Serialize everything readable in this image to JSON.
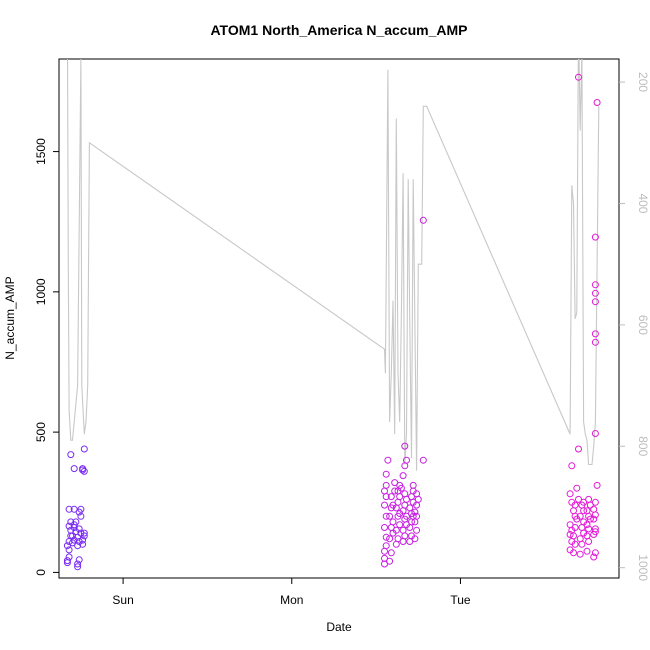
{
  "chart_data": {
    "type": "scatter",
    "title": "ATOM1 North_America N_accum_AMP",
    "xlabel": "Date",
    "ylabel": "N_accum_AMP",
    "xlim": [
      -0.38,
      2.94
    ],
    "ylim": [
      -20,
      1830
    ],
    "x_ticks": [
      {
        "value": 0,
        "label": "Sun"
      },
      {
        "value": 1,
        "label": "Mon"
      },
      {
        "value": 2,
        "label": "Tue"
      }
    ],
    "y_ticks": [
      0,
      500,
      1000,
      1500
    ],
    "y2_ticks": [
      200,
      400,
      600,
      800,
      1000
    ],
    "y2lim": [
      1017,
      162
    ],
    "grid": false,
    "colors": {
      "line": "#c8c8c8",
      "early_points": "#7a2cf5",
      "late_points": "#e41ad8",
      "axis": "#000000",
      "right_axis": "#bdbdbd"
    },
    "line_series": {
      "x": [
        -0.33,
        -0.325,
        -0.32,
        -0.31,
        -0.3,
        -0.29,
        -0.27,
        -0.25,
        -0.25,
        -0.245,
        -0.23,
        -0.22,
        -0.21,
        -0.2,
        -1.5,
        1.55,
        1.555,
        1.57,
        1.58,
        1.59,
        1.6,
        1.61,
        1.62,
        1.63,
        1.64,
        1.65,
        1.66,
        1.67,
        1.68,
        1.69,
        1.7,
        1.71,
        1.72,
        1.73,
        1.74,
        1.75,
        1.76,
        1.77,
        1.78,
        1.79,
        1.8,
        2.65,
        2.66,
        2.67,
        2.68,
        2.69,
        2.7,
        2.71,
        2.72,
        2.73,
        2.74,
        2.75,
        2.76,
        2.77,
        2.78,
        2.79,
        2.8,
        2.82
      ],
      "y2": [
        100,
        500,
        740,
        790,
        790,
        760,
        700,
        160,
        160,
        700,
        780,
        760,
        700,
        300,
        300,
        640,
        680,
        180,
        760,
        680,
        560,
        780,
        260,
        680,
        760,
        580,
        350,
        830,
        780,
        360,
        600,
        820,
        360,
        600,
        840,
        500,
        500,
        500,
        240,
        240,
        240,
        780,
        370,
        400,
        590,
        580,
        100,
        280,
        150,
        760,
        780,
        790,
        830,
        830,
        830,
        800,
        760,
        240
      ]
    },
    "series": [
      {
        "color": "#7a2cf5",
        "points": [
          [
            -0.33,
            35
          ],
          [
            -0.33,
            42
          ],
          [
            -0.32,
            55
          ],
          [
            -0.32,
            80
          ],
          [
            -0.33,
            95
          ],
          [
            -0.32,
            110
          ],
          [
            -0.31,
            130
          ],
          [
            -0.31,
            150
          ],
          [
            -0.32,
            165
          ],
          [
            -0.31,
            180
          ],
          [
            -0.32,
            225
          ],
          [
            -0.31,
            420
          ],
          [
            -0.3,
            105
          ],
          [
            -0.29,
            115
          ],
          [
            -0.3,
            130
          ],
          [
            -0.28,
            145
          ],
          [
            -0.29,
            160
          ],
          [
            -0.29,
            170
          ],
          [
            -0.28,
            180
          ],
          [
            -0.29,
            225
          ],
          [
            -0.29,
            370
          ],
          [
            -0.27,
            20
          ],
          [
            -0.27,
            30
          ],
          [
            -0.26,
            45
          ],
          [
            -0.27,
            95
          ],
          [
            -0.26,
            110
          ],
          [
            -0.27,
            125
          ],
          [
            -0.25,
            140
          ],
          [
            -0.26,
            155
          ],
          [
            -0.25,
            200
          ],
          [
            -0.26,
            215
          ],
          [
            -0.25,
            225
          ],
          [
            -0.24,
            100
          ],
          [
            -0.24,
            115
          ],
          [
            -0.23,
            130
          ],
          [
            -0.23,
            140
          ],
          [
            -0.23,
            360
          ],
          [
            -0.24,
            365
          ],
          [
            -0.24,
            370
          ],
          [
            -0.23,
            440
          ]
        ]
      },
      {
        "color": "#c61fe0",
        "points": [
          [
            1.55,
            30
          ],
          [
            1.55,
            50
          ],
          [
            1.55,
            75
          ],
          [
            1.56,
            95
          ],
          [
            1.56,
            125
          ],
          [
            1.55,
            160
          ],
          [
            1.56,
            200
          ],
          [
            1.55,
            240
          ],
          [
            1.56,
            270
          ],
          [
            1.55,
            290
          ],
          [
            1.56,
            310
          ],
          [
            1.56,
            350
          ],
          [
            1.57,
            400
          ],
          [
            1.58,
            40
          ],
          [
            1.59,
            70
          ],
          [
            1.58,
            120
          ],
          [
            1.6,
            140
          ],
          [
            1.59,
            160
          ],
          [
            1.6,
            180
          ],
          [
            1.58,
            200
          ],
          [
            1.59,
            230
          ],
          [
            1.6,
            240
          ],
          [
            1.59,
            270
          ],
          [
            1.61,
            290
          ],
          [
            1.61,
            320
          ],
          [
            1.62,
            100
          ],
          [
            1.63,
            120
          ],
          [
            1.62,
            150
          ],
          [
            1.64,
            170
          ],
          [
            1.63,
            200
          ],
          [
            1.64,
            210
          ],
          [
            1.62,
            230
          ],
          [
            1.63,
            250
          ],
          [
            1.64,
            270
          ],
          [
            1.63,
            290
          ],
          [
            1.65,
            300
          ],
          [
            1.64,
            310
          ],
          [
            1.66,
            110
          ],
          [
            1.67,
            130
          ],
          [
            1.66,
            150
          ],
          [
            1.68,
            170
          ],
          [
            1.67,
            190
          ],
          [
            1.68,
            200
          ],
          [
            1.66,
            220
          ],
          [
            1.67,
            240
          ],
          [
            1.68,
            260
          ],
          [
            1.67,
            280
          ],
          [
            1.66,
            345
          ],
          [
            1.67,
            380
          ],
          [
            1.68,
            400
          ],
          [
            1.67,
            450
          ],
          [
            1.7,
            110
          ],
          [
            1.71,
            130
          ],
          [
            1.7,
            160
          ],
          [
            1.71,
            180
          ],
          [
            1.72,
            200
          ],
          [
            1.71,
            210
          ],
          [
            1.7,
            230
          ],
          [
            1.72,
            250
          ],
          [
            1.71,
            270
          ],
          [
            1.72,
            290
          ],
          [
            1.72,
            310
          ],
          [
            1.73,
            120
          ],
          [
            1.74,
            150
          ],
          [
            1.73,
            180
          ],
          [
            1.74,
            200
          ],
          [
            1.73,
            215
          ],
          [
            1.74,
            240
          ],
          [
            1.75,
            260
          ],
          [
            1.74,
            280
          ],
          [
            1.78,
            400
          ],
          [
            1.78,
            1255
          ]
        ]
      },
      {
        "color": "#e41ad8",
        "points": [
          [
            2.65,
            80
          ],
          [
            2.66,
            110
          ],
          [
            2.65,
            135
          ],
          [
            2.66,
            150
          ],
          [
            2.65,
            170
          ],
          [
            2.66,
            250
          ],
          [
            2.65,
            280
          ],
          [
            2.66,
            380
          ],
          [
            2.67,
            70
          ],
          [
            2.68,
            100
          ],
          [
            2.67,
            130
          ],
          [
            2.68,
            160
          ],
          [
            2.69,
            190
          ],
          [
            2.68,
            200
          ],
          [
            2.67,
            220
          ],
          [
            2.68,
            240
          ],
          [
            2.7,
            260
          ],
          [
            2.69,
            300
          ],
          [
            2.7,
            440
          ],
          [
            2.7,
            1765
          ],
          [
            2.71,
            65
          ],
          [
            2.72,
            100
          ],
          [
            2.71,
            120
          ],
          [
            2.73,
            140
          ],
          [
            2.72,
            160
          ],
          [
            2.73,
            180
          ],
          [
            2.71,
            200
          ],
          [
            2.73,
            220
          ],
          [
            2.72,
            240
          ],
          [
            2.73,
            250
          ],
          [
            2.75,
            75
          ],
          [
            2.76,
            110
          ],
          [
            2.75,
            130
          ],
          [
            2.76,
            155
          ],
          [
            2.75,
            170
          ],
          [
            2.77,
            190
          ],
          [
            2.76,
            200
          ],
          [
            2.75,
            220
          ],
          [
            2.77,
            240
          ],
          [
            2.76,
            260
          ],
          [
            2.79,
            55
          ],
          [
            2.8,
            70
          ],
          [
            2.79,
            135
          ],
          [
            2.8,
            145
          ],
          [
            2.8,
            155
          ],
          [
            2.79,
            190
          ],
          [
            2.8,
            205
          ],
          [
            2.79,
            225
          ],
          [
            2.8,
            250
          ],
          [
            2.81,
            310
          ],
          [
            2.8,
            495
          ],
          [
            2.8,
            820
          ],
          [
            2.8,
            850
          ],
          [
            2.8,
            965
          ],
          [
            2.8,
            995
          ],
          [
            2.8,
            1025
          ],
          [
            2.8,
            1195
          ],
          [
            2.81,
            1675
          ]
        ]
      }
    ]
  }
}
